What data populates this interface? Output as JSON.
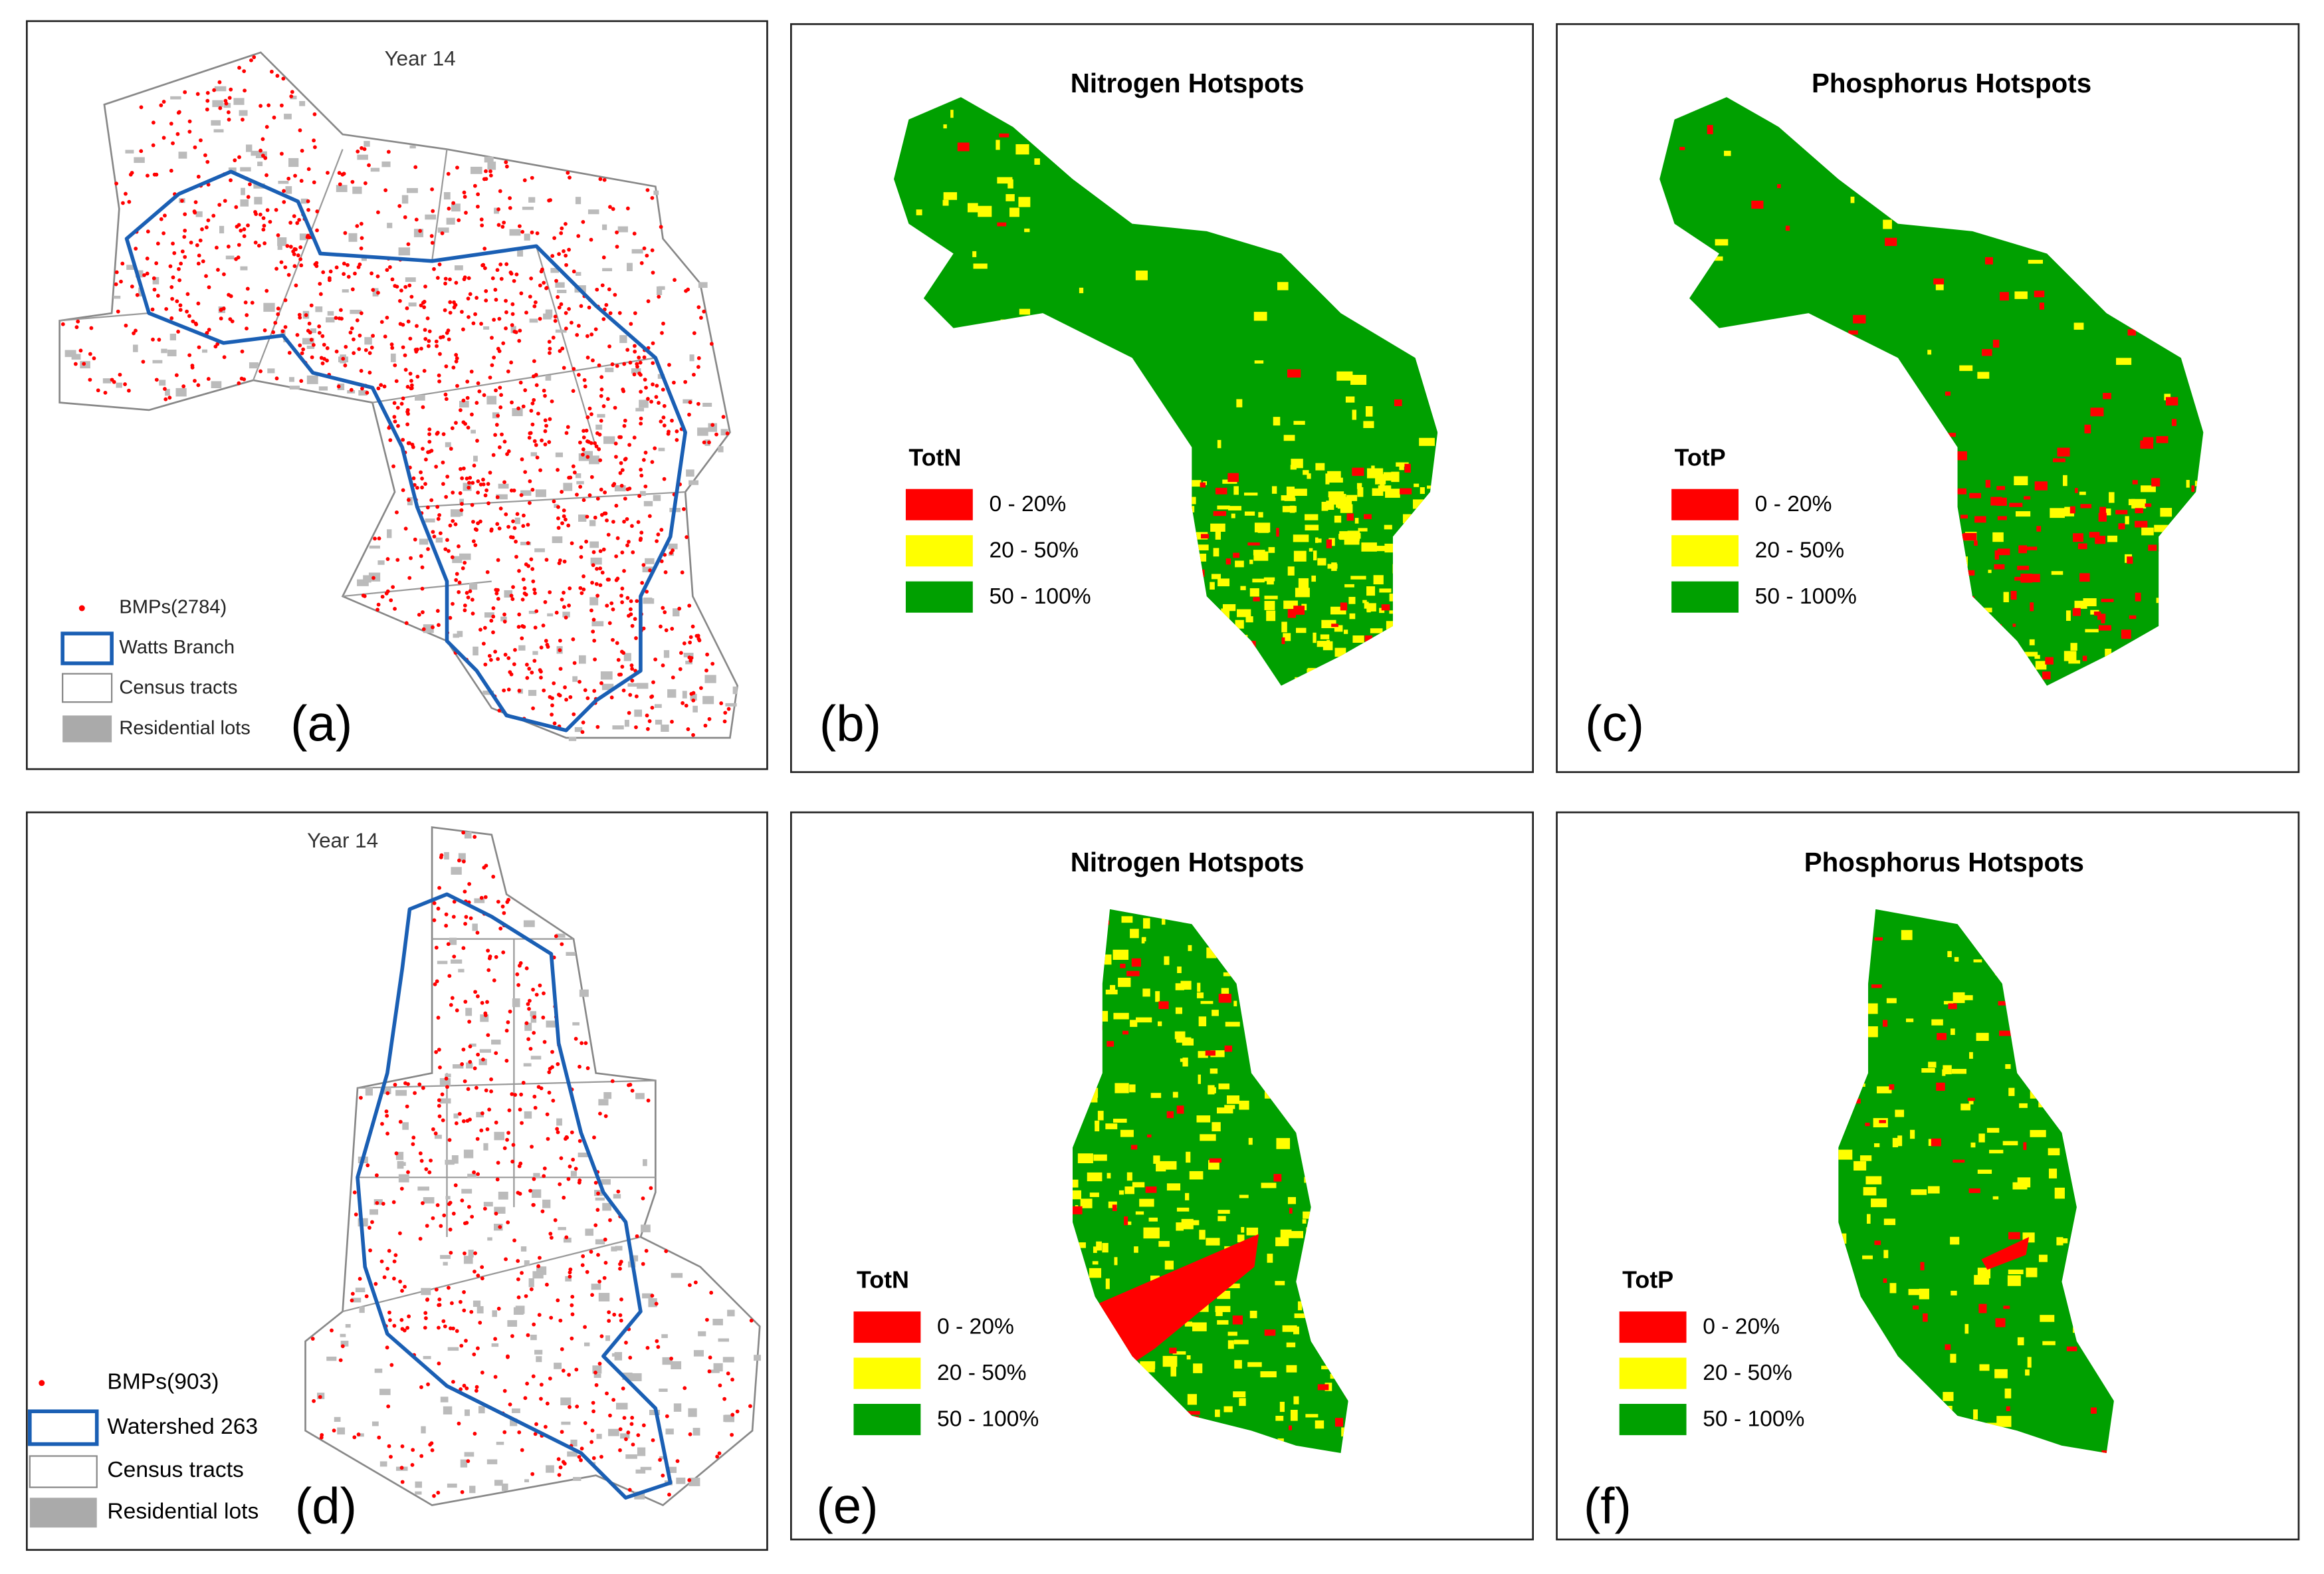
{
  "panels": [
    {
      "tag": "(a)",
      "title": "Year 14",
      "legend": [
        "BMPs(2784)",
        "Watts Branch",
        "Census tracts",
        "Residential lots"
      ]
    },
    {
      "tag": "(b)",
      "title": "Nitrogen Hotspots",
      "legend_title": "TotN",
      "legend": [
        {
          "label": "0 - 20%",
          "color": "#ff0000"
        },
        {
          "label": "20 - 50%",
          "color": "#ffff00"
        },
        {
          "label": "50 - 100%",
          "color": "#00a000"
        }
      ]
    },
    {
      "tag": "(c)",
      "title": "Phosphorus Hotspots",
      "legend_title": "TotP",
      "legend": [
        {
          "label": "0 - 20%",
          "color": "#ff0000"
        },
        {
          "label": "20 - 50%",
          "color": "#ffff00"
        },
        {
          "label": "50 - 100%",
          "color": "#00a000"
        }
      ]
    },
    {
      "tag": "(d)",
      "title": "Year 14",
      "legend": [
        "BMPs(903)",
        "Watershed 263",
        "Census tracts",
        "Residential lots"
      ]
    },
    {
      "tag": "(e)",
      "title": "Nitrogen Hotspots",
      "legend_title": "TotN",
      "legend": [
        {
          "label": "0 - 20%",
          "color": "#ff0000"
        },
        {
          "label": "20 - 50%",
          "color": "#ffff00"
        },
        {
          "label": "50 - 100%",
          "color": "#00a000"
        }
      ]
    },
    {
      "tag": "(f)",
      "title": "Phosphorus Hotspots",
      "legend_title": "TotP",
      "legend": [
        {
          "label": "0 - 20%",
          "color": "#ff0000"
        },
        {
          "label": "20 - 50%",
          "color": "#ffff00"
        },
        {
          "label": "50 - 100%",
          "color": "#00a000"
        }
      ]
    }
  ]
}
